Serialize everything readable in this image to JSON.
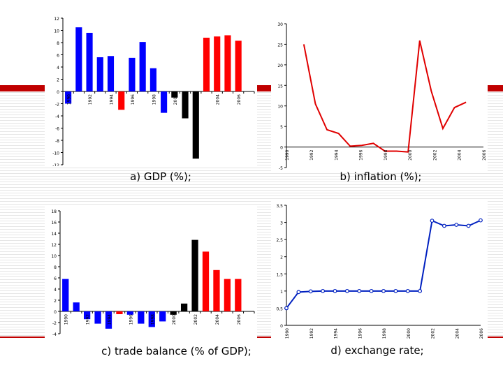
{
  "captions": {
    "a": "a) GDP (%);",
    "b": "b) inflation (%);",
    "c": "c) trade balance (% of GDP);",
    "d": "d) exchange rate;"
  },
  "colors": {
    "blue": "#0000ff",
    "red": "#ff0000",
    "black": "#000000",
    "line_red": "#e00000",
    "line_blue": "#0020c0",
    "accent": "#c00000"
  },
  "chart_data": [
    {
      "id": "gdp",
      "type": "bar",
      "title": "a) GDP (%);",
      "categories": [
        "1990",
        "1991",
        "1992",
        "1993",
        "1994",
        "1995",
        "1996",
        "1997",
        "1998",
        "1999",
        "2000",
        "2001",
        "2002",
        "2003",
        "2004",
        "2005",
        "2006",
        "2007"
      ],
      "x_tick_labels": [
        "1990",
        "1992",
        "1994",
        "1996",
        "1998",
        "2000",
        "2002",
        "2004",
        "2006"
      ],
      "values": [
        -2,
        10.5,
        9.6,
        5.6,
        5.8,
        -3,
        5.5,
        8.1,
        3.8,
        -3.5,
        -1,
        -4.4,
        -11,
        8.8,
        9,
        9.2,
        8.3,
        null
      ],
      "bar_colors": [
        "blue",
        "blue",
        "blue",
        "blue",
        "blue",
        "red",
        "blue",
        "blue",
        "blue",
        "blue",
        "black",
        "black",
        "black",
        "red",
        "red",
        "red",
        "red",
        "red"
      ],
      "y_ticks": [
        "12",
        "10",
        "8",
        "6",
        "4",
        "2",
        "0",
        "-2",
        "-4",
        "-6",
        "-8",
        "-10",
        "-12"
      ],
      "ylim": [
        -12,
        12
      ]
    },
    {
      "id": "inflation",
      "type": "line",
      "title": "b) inflation (%);",
      "x_tick_labels": [
        "1990",
        "1992",
        "1994",
        "1996",
        "1998",
        "2000",
        "2002",
        "2004",
        "2006"
      ],
      "x": [
        1991.5,
        1992.5,
        1993.5,
        1994.5,
        1995.5,
        1996.5,
        1997.5,
        1998.5,
        1999.5,
        2000.5,
        2001.5,
        2002.5,
        2003.5,
        2004.5,
        2005.5,
        2006.5
      ],
      "values": [
        25,
        10.5,
        4.2,
        3.3,
        0.2,
        0.4,
        0.9,
        -1,
        -1,
        -1.2,
        25.9,
        13.6,
        4.5,
        9.6,
        10.9,
        null
      ],
      "y_ticks": [
        "30",
        "25",
        "20",
        "15",
        "10",
        "5",
        "0",
        "-5"
      ],
      "ylim": [
        -5,
        30
      ],
      "xlim": [
        1990,
        2007
      ]
    },
    {
      "id": "trade",
      "type": "bar",
      "title": "c) trade balance (% of GDP);",
      "categories": [
        "1990",
        "1991",
        "1992",
        "1993",
        "1994",
        "1995",
        "1996",
        "1997",
        "1998",
        "1999",
        "2000",
        "2001",
        "2002",
        "2003",
        "2004",
        "2005",
        "2006",
        "2007"
      ],
      "x_tick_labels": [
        "1990",
        "1992",
        "1994",
        "1996",
        "1998",
        "2000",
        "2002",
        "2004",
        "2006"
      ],
      "values": [
        5.8,
        1.6,
        -1.4,
        -2.2,
        -3.1,
        -0.5,
        -0.6,
        -2.2,
        -2.8,
        -1.8,
        -0.6,
        1.4,
        12.8,
        10.7,
        7.4,
        5.8,
        5.8,
        null
      ],
      "bar_colors": [
        "blue",
        "blue",
        "blue",
        "blue",
        "blue",
        "red",
        "blue",
        "blue",
        "blue",
        "blue",
        "black",
        "black",
        "black",
        "red",
        "red",
        "red",
        "red",
        "red"
      ],
      "y_ticks": [
        "18",
        "16",
        "14",
        "12",
        "10",
        "8",
        "6",
        "4",
        "2",
        "0",
        "-2",
        "-4"
      ],
      "ylim": [
        -4,
        18
      ]
    },
    {
      "id": "exchange",
      "type": "line",
      "title": "d) exchange rate;",
      "x_tick_labels": [
        "1990",
        "1992",
        "1994",
        "1996",
        "1998",
        "2000",
        "2002",
        "2004",
        "2006"
      ],
      "x": [
        1990,
        1991,
        1992,
        1993,
        1994,
        1995,
        1996,
        1997,
        1998,
        1999,
        2000,
        2001,
        2002,
        2003,
        2004,
        2005,
        2006
      ],
      "values": [
        0.5,
        0.97,
        0.99,
        1.0,
        1.0,
        1.0,
        1.0,
        1.0,
        1.0,
        1.0,
        1.0,
        1.0,
        3.05,
        2.9,
        2.93,
        2.9,
        3.06
      ],
      "y_ticks": [
        "3,5",
        "3",
        "2,5",
        "2",
        "1,5",
        "1",
        "0,5",
        "0"
      ],
      "ylim": [
        0,
        3.5
      ],
      "xlim": [
        1990,
        2006
      ]
    }
  ]
}
